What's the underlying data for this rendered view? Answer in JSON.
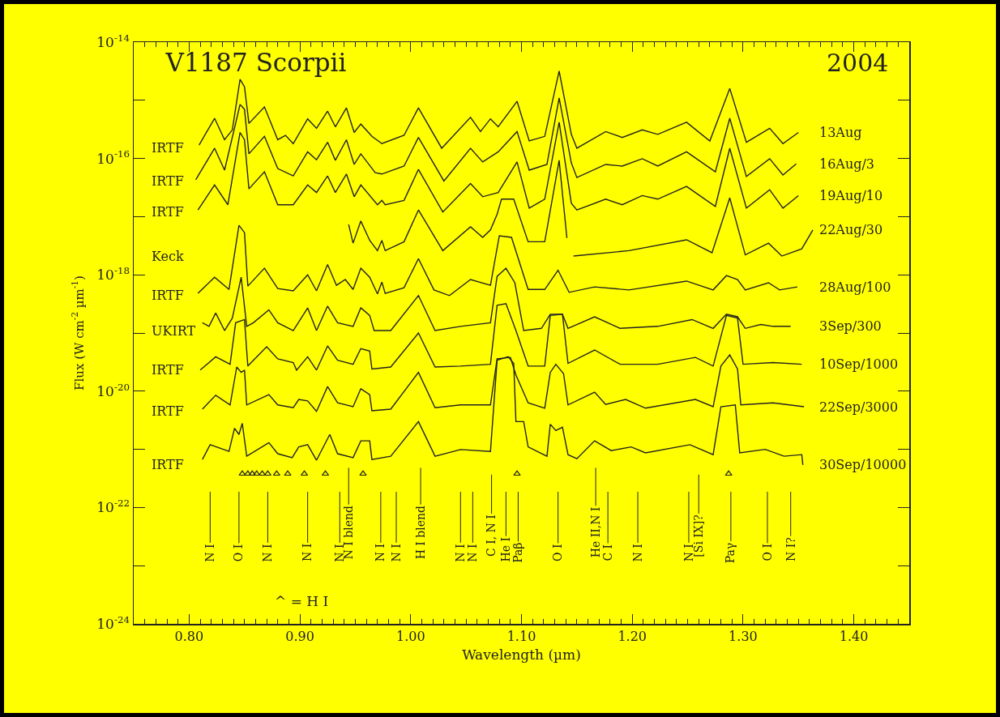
{
  "chart_data": {
    "type": "line",
    "title": "V1187 Scorpii",
    "xlabel": "Wavelength (µm)",
    "ylabel": "Flux (W cm$^{-2}$ µm$^{-1}$)",
    "log": true,
    "xlim": [
      0.75,
      1.45
    ],
    "xticks": [
      {
        "value": 0.8,
        "label": "0.80"
      },
      {
        "value": 0.9,
        "label": "0.90"
      },
      {
        "value": 1.0,
        "label": "1.00"
      },
      {
        "value": 1.1,
        "label": "1.10"
      },
      {
        "value": 1.2,
        "label": "1.20"
      },
      {
        "value": 1.3,
        "label": "1.30"
      },
      {
        "value": 1.4,
        "label": "1.40"
      }
    ],
    "ylim": [
      1e-24,
      1e-14
    ],
    "yticks": [
      {
        "value": 1e-14,
        "label": "10$^{-14}$"
      },
      {
        "value": 1e-15,
        "label": null
      },
      {
        "value": 1e-16,
        "label": "10$^{-16}$"
      },
      {
        "value": 1e-17,
        "label": null
      },
      {
        "value": 1e-18,
        "label": "10$^{-18}$"
      },
      {
        "value": 1e-19,
        "label": null
      },
      {
        "value": 1e-20,
        "label": "10$^{-20}$"
      },
      {
        "value": 1e-21,
        "label": null
      },
      {
        "value": 1e-22,
        "label": "10$^{-22}$"
      },
      {
        "value": 1e-23,
        "label": null
      },
      {
        "value": 1e-24,
        "label": "10$^{-24}$"
      }
    ],
    "series": [
      {
        "name": "13Aug",
        "color": "#222222",
        "x": [
          0.809,
          0.823,
          0.832,
          0.839,
          0.846,
          0.85,
          0.854,
          0.868,
          0.88,
          0.887,
          0.894,
          0.907,
          0.915,
          0.925,
          0.932,
          0.942,
          0.949,
          0.955,
          0.965,
          0.974,
          0.994,
          1.007,
          1.028,
          1.054,
          1.063,
          1.072,
          1.079,
          1.096,
          1.107,
          1.121,
          1.134,
          1.145,
          1.15,
          1.176,
          1.191,
          1.209,
          1.223,
          1.249,
          1.27,
          1.288,
          1.303,
          1.324,
          1.336,
          1.35
        ],
        "values": [
          1.7e-16,
          4.9e-16,
          2.1e-16,
          3.1e-16,
          2.3e-15,
          1.7e-15,
          4e-16,
          7.7e-16,
          2.1e-16,
          2.5e-16,
          1.8e-16,
          4.8e-16,
          3.3e-16,
          6.5e-16,
          3.5e-16,
          7.4e-16,
          2.8e-16,
          3.9e-16,
          2.4e-16,
          1.8e-16,
          2.5e-16,
          7.4e-16,
          1.5e-16,
          5.1e-16,
          2.9e-16,
          4.8e-16,
          3.5e-16,
          9.6e-16,
          2e-16,
          2.4e-16,
          3.2e-15,
          2.6e-16,
          1.5e-16,
          2.9e-16,
          2.3e-16,
          3.1e-16,
          2.6e-16,
          4.2e-16,
          2e-16,
          1.6e-15,
          1.9e-16,
          3.3e-16,
          1.8e-16,
          2.8e-16
        ]
      },
      {
        "name": "16Aug/3",
        "color": "#222222",
        "x": [
          0.806,
          0.823,
          0.832,
          0.846,
          0.85,
          0.854,
          0.868,
          0.88,
          0.894,
          0.907,
          0.915,
          0.925,
          0.932,
          0.942,
          0.949,
          0.955,
          0.968,
          0.974,
          0.994,
          1.007,
          1.03,
          1.054,
          1.065,
          1.079,
          1.096,
          1.107,
          1.123,
          1.134,
          1.145,
          1.15,
          1.176,
          1.191,
          1.209,
          1.223,
          1.249,
          1.275,
          1.288,
          1.303,
          1.324,
          1.336,
          1.348
        ],
        "values": [
          4.3e-17,
          1.5e-16,
          6.3e-17,
          8.5e-16,
          7e-16,
          1.2e-16,
          2.4e-16,
          6.7e-17,
          5e-17,
          1.3e-16,
          9.5e-17,
          1.9e-16,
          9.3e-17,
          2.1e-16,
          7.9e-17,
          1.2e-16,
          5.7e-17,
          5.4e-17,
          7.4e-17,
          2.3e-16,
          4.1e-17,
          1.5e-16,
          8.7e-17,
          1.3e-16,
          2.9e-16,
          6.3e-17,
          7.9e-17,
          1.1e-15,
          8.4e-17,
          4.7e-17,
          7.9e-17,
          7.4e-17,
          9.9e-17,
          7.4e-17,
          1.3e-16,
          5.9e-17,
          4.9e-16,
          4.9e-17,
          9.9e-17,
          5.2e-17,
          8.1e-17
        ]
      },
      {
        "name": "19Aug/10",
        "color": "#222222",
        "x": [
          0.808,
          0.823,
          0.835,
          0.846,
          0.85,
          0.854,
          0.868,
          0.88,
          0.894,
          0.907,
          0.915,
          0.925,
          0.932,
          0.942,
          0.949,
          0.955,
          0.97,
          0.974,
          0.977,
          0.994,
          1.007,
          1.029,
          1.054,
          1.065,
          1.079,
          1.096,
          1.107,
          1.121,
          1.134,
          1.145,
          1.15,
          1.176,
          1.191,
          1.209,
          1.223,
          1.249,
          1.275,
          1.288,
          1.303,
          1.324,
          1.336,
          1.35
        ],
        "values": [
          1.3e-17,
          3.5e-17,
          1.6e-17,
          2.8e-16,
          2.1e-16,
          3e-17,
          5.9e-17,
          1.6e-17,
          1.6e-17,
          3.5e-17,
          2.6e-17,
          5e-17,
          2.6e-17,
          5.4e-17,
          2.2e-17,
          3.5e-17,
          1.6e-17,
          1.9e-17,
          1.6e-17,
          1.9e-17,
          6.5e-17,
          1.2e-17,
          3.7e-17,
          2.2e-17,
          2.6e-17,
          8.7e-17,
          1.4e-17,
          2e-17,
          4.2e-16,
          1.7e-17,
          1.3e-17,
          2e-17,
          1.6e-17,
          2.3e-17,
          2e-17,
          3.3e-17,
          1.5e-17,
          1.5e-16,
          1.4e-17,
          2.9e-17,
          1.4e-17,
          2.3e-17
        ]
      },
      {
        "name": "22Aug/30",
        "color": "#222222",
        "x": [
          0.944,
          0.948,
          0.955,
          0.963,
          0.97,
          0.974,
          0.977,
          0.994,
          1.007,
          1.029,
          1.054,
          1.065,
          1.072,
          1.078,
          1.082,
          1.093,
          1.106,
          1.121,
          1.134,
          1.141,
          1.144,
          1.147,
          1.197,
          1.249,
          1.272,
          1.288,
          1.302,
          1.323,
          1.335,
          1.353,
          1.363
        ],
        "values": [
          7.3e-18,
          3.5e-18,
          8.4e-18,
          3.9e-18,
          2.6e-18,
          3.9e-18,
          2.6e-18,
          3.7e-18,
          1.3e-17,
          2.6e-18,
          6.7e-18,
          4.4e-18,
          5.9e-18,
          1.1e-17,
          2e-17,
          2e-17,
          3.7e-18,
          3.7e-18,
          9.3e-17,
          4.3e-18,
          null,
          2.1e-18,
          2.6e-18,
          4e-18,
          2.4e-18,
          2.1e-17,
          2.2e-18,
          3.5e-18,
          2.1e-18,
          2.8e-18,
          5.9e-18
        ]
      },
      {
        "name": "28Aug/100",
        "color": "#222222",
        "x": [
          0.808,
          0.823,
          0.836,
          0.845,
          0.85,
          0.853,
          0.868,
          0.88,
          0.894,
          0.907,
          0.915,
          0.925,
          0.933,
          0.941,
          0.948,
          0.955,
          0.963,
          0.97,
          0.974,
          0.977,
          0.994,
          1.007,
          1.021,
          1.035,
          1.054,
          1.072,
          1.08,
          1.091,
          1.106,
          1.121,
          1.133,
          1.143,
          1.166,
          1.197,
          1.249,
          1.273,
          1.285,
          1.295,
          1.302,
          1.323,
          1.333,
          1.349
        ],
        "values": [
          4.8e-19,
          9.1e-19,
          5.6e-19,
          7.1e-18,
          5.3e-18,
          6.4e-19,
          1.3e-18,
          5.8e-19,
          5.3e-19,
          1e-18,
          5.3e-19,
          1.5e-18,
          6.6e-19,
          8.3e-19,
          5.6e-19,
          1.3e-18,
          9.1e-19,
          4.7e-19,
          7.5e-19,
          4.8e-19,
          6e-19,
          1.9e-18,
          5.5e-19,
          4.4e-19,
          8.3e-19,
          6.6e-19,
          4.7e-18,
          4.4e-18,
          5.6e-19,
          5.6e-19,
          1.2e-18,
          5e-19,
          6.2e-19,
          5.5e-19,
          7.8e-19,
          5.5e-19,
          9.7e-19,
          8.3e-19,
          5.5e-19,
          7.3e-19,
          5.5e-19,
          6.2e-19
        ]
      },
      {
        "name": "3Sep/300",
        "color": "#222222",
        "x": [
          0.812,
          0.818,
          0.824,
          0.832,
          0.839,
          0.847,
          0.852,
          0.858,
          0.872,
          0.88,
          0.894,
          0.907,
          0.915,
          0.925,
          0.934,
          0.948,
          0.955,
          0.963,
          0.967,
          0.982,
          1.007,
          1.022,
          1.045,
          1.072,
          1.078,
          1.086,
          1.094,
          1.102,
          1.118,
          1.126,
          1.137,
          1.142,
          1.166,
          1.189,
          1.223,
          1.254,
          1.273,
          1.285,
          1.295,
          1.302,
          1.316,
          1.327,
          1.343
        ],
        "values": [
          1.5e-19,
          1.3e-19,
          2.2e-19,
          1.1e-19,
          1.8e-19,
          9.1e-19,
          1.3e-19,
          1.5e-19,
          2.5e-19,
          1.5e-19,
          1.1e-19,
          2.7e-19,
          1.1e-19,
          2.9e-19,
          1.5e-19,
          1.3e-19,
          2.7e-19,
          2e-19,
          1.1e-19,
          1.1e-19,
          4.4e-19,
          1.1e-19,
          1.3e-19,
          1.5e-19,
          9.4e-19,
          1.3e-18,
          7.3e-19,
          1.1e-19,
          1.2e-19,
          2.1e-19,
          2.1e-19,
          1.2e-19,
          1.9e-19,
          1.2e-19,
          1.3e-19,
          1.7e-19,
          1.2e-19,
          2.1e-19,
          1.9e-19,
          1.2e-19,
          1.4e-19,
          1.3e-19,
          1.3e-19
        ]
      },
      {
        "name": "10Sep/1000",
        "color": "#222222",
        "x": [
          0.81,
          0.824,
          0.837,
          0.842,
          0.85,
          0.853,
          0.87,
          0.88,
          0.894,
          0.897,
          0.907,
          0.915,
          0.925,
          0.934,
          0.948,
          0.955,
          0.963,
          0.965,
          0.982,
          1.007,
          1.022,
          1.045,
          1.072,
          1.078,
          1.086,
          1.095,
          1.106,
          1.121,
          1.126,
          1.137,
          1.142,
          1.166,
          1.189,
          1.223,
          1.257,
          1.273,
          1.285,
          1.295,
          1.3,
          1.327,
          1.353
        ],
        "values": [
          2.3e-20,
          3.9e-20,
          2.9e-20,
          1.5e-19,
          1.7e-19,
          2.7e-20,
          5.8e-20,
          3.6e-20,
          3.1e-20,
          2.3e-20,
          3.9e-20,
          2.3e-20,
          6e-20,
          3.4e-20,
          2.9e-20,
          5.4e-20,
          4.9e-20,
          2.4e-20,
          2.6e-20,
          1e-19,
          2.6e-20,
          2.7e-20,
          2.9e-20,
          3e-19,
          3.2e-19,
          1.1e-19,
          2.7e-20,
          2.7e-20,
          2e-19,
          2.1e-19,
          3e-20,
          5.1e-20,
          2.9e-20,
          2.9e-20,
          3.8e-20,
          2.7e-20,
          2e-19,
          1.8e-19,
          2.9e-20,
          3.1e-20,
          2.9e-20
        ]
      },
      {
        "name": "22Sep/3000",
        "color": "#222222",
        "x": [
          0.812,
          0.824,
          0.837,
          0.843,
          0.847,
          0.85,
          0.852,
          0.872,
          0.88,
          0.894,
          0.899,
          0.907,
          0.915,
          0.925,
          0.934,
          0.948,
          0.955,
          0.963,
          0.965,
          0.982,
          1.007,
          1.022,
          1.045,
          1.072,
          1.078,
          1.09,
          1.095,
          1.106,
          1.121,
          1.126,
          1.131,
          1.138,
          1.142,
          1.166,
          1.176,
          1.194,
          1.212,
          1.257,
          1.273,
          1.28,
          1.288,
          1.295,
          1.298,
          1.327,
          1.355
        ],
        "values": [
          4.9e-21,
          8.5e-21,
          5.8e-21,
          2.6e-20,
          2.1e-20,
          2.3e-20,
          5.8e-21,
          8.7e-21,
          5.8e-21,
          5.2e-21,
          7.2e-21,
          6.8e-21,
          4.5e-21,
          1.2e-20,
          6.3e-21,
          5.4e-21,
          1.1e-20,
          8.7e-21,
          4.6e-21,
          4.9e-21,
          2.1e-20,
          5.2e-21,
          5.8e-21,
          5.8e-21,
          3.6e-20,
          3.8e-20,
          1.9e-20,
          6.3e-21,
          5.1e-21,
          2.1e-20,
          2.9e-20,
          2e-20,
          5.8e-21,
          9.6e-21,
          5.9e-21,
          7.2e-21,
          5.1e-21,
          7.2e-21,
          5.4e-21,
          2.7e-20,
          4.2e-20,
          2.4e-20,
          5.8e-21,
          6.3e-21,
          5.4e-21
        ]
      },
      {
        "name": "30Sep/10000",
        "color": "#222222",
        "x": [
          0.812,
          0.819,
          0.836,
          0.841,
          0.845,
          0.848,
          0.852,
          0.872,
          0.88,
          0.893,
          0.899,
          0.907,
          0.915,
          0.927,
          0.934,
          0.948,
          0.955,
          0.963,
          0.965,
          0.982,
          1.007,
          1.022,
          1.045,
          1.072,
          1.078,
          1.088,
          1.093,
          1.095,
          1.102,
          1.106,
          1.123,
          1.126,
          1.131,
          1.137,
          1.142,
          1.15,
          1.166,
          1.181,
          1.199,
          1.212,
          1.252,
          1.273,
          1.28,
          1.293,
          1.297,
          1.32,
          1.337,
          1.353,
          1.354
        ],
        "values": [
          6.7e-22,
          1.2e-21,
          9.2e-22,
          2.3e-21,
          1.8e-21,
          2.8e-21,
          7.6e-22,
          1.3e-21,
          8.4e-22,
          7.2e-22,
          1.1e-21,
          1.2e-21,
          6.5e-22,
          1.8e-21,
          8.4e-22,
          7.2e-22,
          1.4e-21,
          1.4e-21,
          6.7e-22,
          7.6e-22,
          3e-21,
          7.6e-22,
          9.9e-22,
          9.2e-22,
          3.4e-20,
          3.9e-20,
          3e-20,
          3e-21,
          3e-21,
          1.1e-21,
          7.6e-22,
          2.7e-21,
          2.1e-21,
          2.4e-21,
          8.1e-22,
          6.9e-22,
          1.4e-21,
          9.5e-22,
          1.1e-21,
          8.7e-22,
          1.2e-21,
          8.1e-22,
          5.4e-21,
          5.8e-21,
          8.7e-22,
          1e-21,
          7.6e-22,
          8.1e-22,
          5.4e-22
        ]
      },
      {
        "type": "scatter",
        "marker": "triangle",
        "color": "#222222",
        "x": [
          0.848,
          0.853,
          0.857,
          0.861,
          0.866,
          0.871,
          0.879,
          0.889,
          0.904,
          0.923,
          0.957,
          1.096,
          1.287
        ],
        "values": [
          3.8e-22,
          3.8e-22,
          3.8e-22,
          3.8e-22,
          3.8e-22,
          3.8e-22,
          3.8e-22,
          3.8e-22,
          3.8e-22,
          3.8e-22,
          3.8e-22,
          3.8e-22,
          3.8e-22
        ]
      }
    ],
    "legend": "right",
    "annotations": [
      "2004",
      "^ = H I",
      "IRTF",
      "IRTF",
      "IRTF",
      "Keck",
      "IRTF",
      "UKIRT",
      "IRTF",
      "IRTF",
      "IRTF"
    ],
    "ref_lines": [
      {
        "axis": "x",
        "value": 0.819,
        "label": "N I"
      },
      {
        "axis": "x",
        "value": 0.845,
        "label": "O I"
      },
      {
        "axis": "x",
        "value": 0.871,
        "label": "N I"
      },
      {
        "axis": "x",
        "value": 0.907,
        "label": "N I"
      },
      {
        "axis": "x",
        "value": 0.936,
        "label": "N I"
      },
      {
        "axis": "x",
        "value": 0.944,
        "label": "N I blend"
      },
      {
        "axis": "x",
        "value": 0.973,
        "label": "N I"
      },
      {
        "axis": "x",
        "value": 0.987,
        "label": "N I"
      },
      {
        "axis": "x",
        "value": 1.009,
        "label": "H I blend"
      },
      {
        "axis": "x",
        "value": 1.045,
        "label": "N I"
      },
      {
        "axis": "x",
        "value": 1.056,
        "label": "N I"
      },
      {
        "axis": "x",
        "value": 1.073,
        "label": "C I, N I"
      },
      {
        "axis": "x",
        "value": 1.086,
        "label": "He I"
      },
      {
        "axis": "x",
        "value": 1.097,
        "label": "Paβ"
      },
      {
        "axis": "x",
        "value": 1.133,
        "label": "O I"
      },
      {
        "axis": "x",
        "value": 1.167,
        "label": "He II,N I"
      },
      {
        "axis": "x",
        "value": 1.178,
        "label": "C I"
      },
      {
        "axis": "x",
        "value": 1.205,
        "label": "N I"
      },
      {
        "axis": "x",
        "value": 1.251,
        "label": "N I"
      },
      {
        "axis": "x",
        "value": 1.26,
        "label": "[Si IX]?"
      },
      {
        "axis": "x",
        "value": 1.289,
        "label": "Paγ"
      },
      {
        "axis": "x",
        "value": 1.322,
        "label": "O I"
      },
      {
        "axis": "x",
        "value": 1.343,
        "label": "N I?"
      }
    ]
  }
}
